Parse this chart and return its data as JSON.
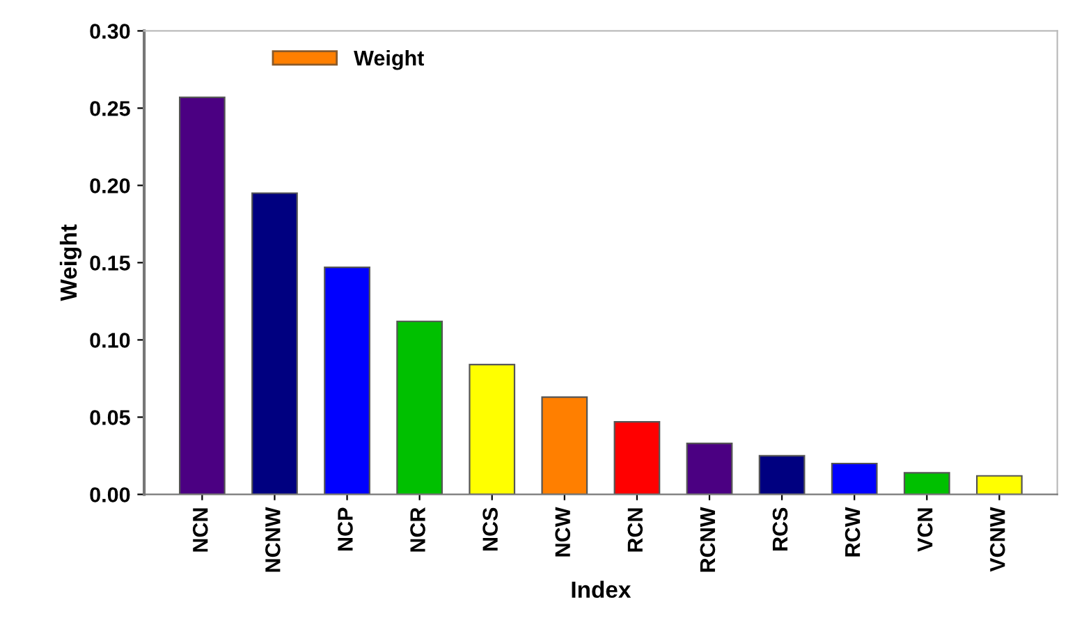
{
  "chart_data": {
    "type": "bar",
    "xlabel": "Index",
    "ylabel": "Weight",
    "categories": [
      "NCN",
      "NCNW",
      "NCP",
      "NCR",
      "NCS",
      "NCW",
      "RCN",
      "RCNW",
      "RCS",
      "RCW",
      "VCN",
      "VCNW"
    ],
    "series": [
      {
        "name": "Weight",
        "color": "#ff7f00",
        "values": [
          0.257,
          0.195,
          0.147,
          0.112,
          0.084,
          0.063,
          0.047,
          0.033,
          0.025,
          0.02,
          0.014,
          0.012
        ],
        "colors": [
          "#4b0082",
          "#000080",
          "#0000ff",
          "#00c000",
          "#ffff00",
          "#ff7f00",
          "#ff0000",
          "#4b0082",
          "#000080",
          "#0000ff",
          "#00c000",
          "#ffff00"
        ]
      }
    ],
    "ylim": [
      0,
      0.3
    ],
    "yticks": [
      {
        "value": 0,
        "label": "0.00"
      },
      {
        "value": 0.05,
        "label": "0.05"
      },
      {
        "value": 0.1,
        "label": "0.10"
      },
      {
        "value": 0.15,
        "label": "0.15"
      },
      {
        "value": 0.2,
        "label": "0.20"
      },
      {
        "value": 0.25,
        "label": "0.25"
      },
      {
        "value": 0.3,
        "label": "0.30"
      }
    ],
    "grid": false,
    "legend": "top left"
  }
}
